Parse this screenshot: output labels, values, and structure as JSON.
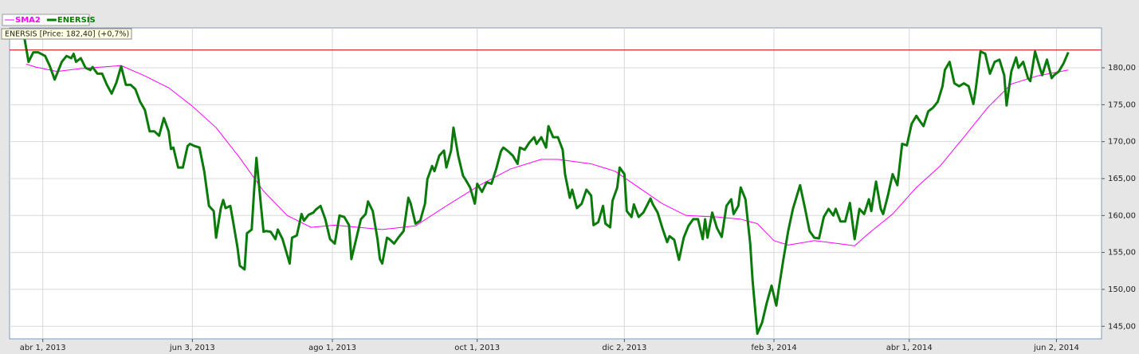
{
  "chart_data": {
    "type": "line",
    "annotation": "ENERSIS [Price: 182,40] (+0,7%)",
    "price_line": 182.4,
    "price_line_color": "#c00000",
    "grid": true,
    "xlim": [
      "2013-03-18",
      "2014-06-21"
    ],
    "xticks": [
      {
        "value": "2013-04-01",
        "label": "abr 1, 2013"
      },
      {
        "value": "2013-06-03",
        "label": "jun 3, 2013"
      },
      {
        "value": "2013-08-01",
        "label": "ago 1, 2013"
      },
      {
        "value": "2013-10-01",
        "label": "oct 1, 2013"
      },
      {
        "value": "2013-12-02",
        "label": "dic 2, 2013"
      },
      {
        "value": "2014-02-03",
        "label": "feb 3, 2014"
      },
      {
        "value": "2014-04-01",
        "label": "abr 1, 2014"
      },
      {
        "value": "2014-06-02",
        "label": "jun 2, 2014"
      }
    ],
    "ylim": [
      143.3,
      185.4
    ],
    "yticks": [
      {
        "value": 145,
        "label": "145,00"
      },
      {
        "value": 150,
        "label": "150,00"
      },
      {
        "value": 155,
        "label": "155,00"
      },
      {
        "value": 160,
        "label": "160,00"
      },
      {
        "value": 165,
        "label": "165,00"
      },
      {
        "value": 170,
        "label": "170,00"
      },
      {
        "value": 175,
        "label": "175,00"
      },
      {
        "value": 180,
        "label": "180,00"
      }
    ],
    "series": [
      {
        "name": "SMA2",
        "color": "#ff00ff",
        "width": 1,
        "x": [
          "2013-03-25",
          "2013-03-29",
          "2013-04-07",
          "2013-04-17",
          "2013-05-04",
          "2013-05-14",
          "2013-05-24",
          "2013-06-03",
          "2013-06-13",
          "2013-06-23",
          "2013-07-03",
          "2013-07-13",
          "2013-07-23",
          "2013-08-02",
          "2013-08-12",
          "2013-08-22",
          "2013-09-05",
          "2013-09-18",
          "2013-10-02",
          "2013-10-15",
          "2013-10-28",
          "2013-11-04",
          "2013-11-18",
          "2013-11-28",
          "2013-12-08",
          "2013-12-18",
          "2013-12-28",
          "2014-01-10",
          "2014-01-20",
          "2014-01-27",
          "2014-02-03",
          "2014-02-09",
          "2014-02-20",
          "2014-03-02",
          "2014-03-09",
          "2014-03-15",
          "2014-03-25",
          "2014-04-04",
          "2014-04-14",
          "2014-04-24",
          "2014-05-04",
          "2014-05-14",
          "2014-05-25",
          "2014-06-07"
        ],
        "values": [
          180.5,
          180.1,
          179.5,
          179.9,
          180.3,
          178.9,
          177.3,
          174.8,
          171.9,
          167.8,
          163.3,
          160,
          158.4,
          158.7,
          158.4,
          158.1,
          158.6,
          161.3,
          164.1,
          166.3,
          167.6,
          167.6,
          167,
          166,
          163.8,
          161.6,
          160,
          159.8,
          159.5,
          158.9,
          156.6,
          156,
          156.6,
          156.2,
          155.9,
          157.6,
          160.2,
          163.8,
          166.7,
          170.6,
          174.6,
          177.8,
          178.9,
          179.7
        ]
      },
      {
        "name": "ENERSIS",
        "color": "#0a7a0a",
        "width": 3,
        "x": [
          "2013-03-24",
          "2013-03-26",
          "2013-03-28",
          "2013-03-30",
          "2013-04-02",
          "2013-04-04",
          "2013-04-06",
          "2013-04-09",
          "2013-04-11",
          "2013-04-13",
          "2013-04-14",
          "2013-04-15",
          "2013-04-17",
          "2013-04-19",
          "2013-04-21",
          "2013-04-22",
          "2013-04-24",
          "2013-04-26",
          "2013-04-28",
          "2013-04-30",
          "2013-05-02",
          "2013-05-04",
          "2013-05-06",
          "2013-05-08",
          "2013-05-10",
          "2013-05-12",
          "2013-05-14",
          "2013-05-16",
          "2013-05-18",
          "2013-05-20",
          "2013-05-22",
          "2013-05-24",
          "2013-05-25",
          "2013-05-26",
          "2013-05-28",
          "2013-05-30",
          "2013-06-01",
          "2013-06-02",
          "2013-06-04",
          "2013-06-06",
          "2013-06-08",
          "2013-06-10",
          "2013-06-12",
          "2013-06-13",
          "2013-06-15",
          "2013-06-16",
          "2013-06-17",
          "2013-06-19",
          "2013-06-20",
          "2013-06-22",
          "2013-06-23",
          "2013-06-25",
          "2013-06-26",
          "2013-06-28",
          "2013-06-29",
          "2013-06-30",
          "2013-07-02",
          "2013-07-03",
          "2013-07-04",
          "2013-07-06",
          "2013-07-08",
          "2013-07-09",
          "2013-07-11",
          "2013-07-14",
          "2013-07-15",
          "2013-07-17",
          "2013-07-19",
          "2013-07-20",
          "2013-07-22",
          "2013-07-24",
          "2013-07-25",
          "2013-07-27",
          "2013-07-29",
          "2013-07-31",
          "2013-08-02",
          "2013-08-04",
          "2013-08-06",
          "2013-08-08",
          "2013-08-09",
          "2013-08-11",
          "2013-08-13",
          "2013-08-15",
          "2013-08-16",
          "2013-08-18",
          "2013-08-20",
          "2013-08-21",
          "2013-08-22",
          "2013-08-24",
          "2013-08-25",
          "2013-08-27",
          "2013-08-29",
          "2013-08-31",
          "2013-09-02",
          "2013-09-03",
          "2013-09-05",
          "2013-09-07",
          "2013-09-09",
          "2013-09-10",
          "2013-09-12",
          "2013-09-13",
          "2013-09-15",
          "2013-09-17",
          "2013-09-18",
          "2013-09-20",
          "2013-09-21",
          "2013-09-23",
          "2013-09-25",
          "2013-09-26",
          "2013-09-28",
          "2013-09-30",
          "2013-10-01",
          "2013-10-03",
          "2013-10-05",
          "2013-10-07",
          "2013-10-09",
          "2013-10-11",
          "2013-10-12",
          "2013-10-14",
          "2013-10-16",
          "2013-10-18",
          "2013-10-19",
          "2013-10-21",
          "2013-10-23",
          "2013-10-25",
          "2013-10-26",
          "2013-10-28",
          "2013-10-30",
          "2013-10-31",
          "2013-11-02",
          "2013-11-04",
          "2013-11-06",
          "2013-11-07",
          "2013-11-09",
          "2013-11-10",
          "2013-11-12",
          "2013-11-14",
          "2013-11-16",
          "2013-11-18",
          "2013-11-19",
          "2013-11-21",
          "2013-11-23",
          "2013-11-24",
          "2013-11-26",
          "2013-11-27",
          "2013-11-29",
          "2013-11-30",
          "2013-12-02",
          "2013-12-03",
          "2013-12-05",
          "2013-12-06",
          "2013-12-08",
          "2013-12-10",
          "2013-12-13",
          "2013-12-14",
          "2013-12-16",
          "2013-12-18",
          "2013-12-20",
          "2013-12-21",
          "2013-12-23",
          "2013-12-25",
          "2013-12-27",
          "2013-12-29",
          "2013-12-31",
          "2014-01-02",
          "2014-01-04",
          "2014-01-05",
          "2014-01-06",
          "2014-01-08",
          "2014-01-10",
          "2014-01-12",
          "2014-01-14",
          "2014-01-16",
          "2014-01-17",
          "2014-01-19",
          "2014-01-20",
          "2014-01-22",
          "2014-01-24",
          "2014-01-25",
          "2014-01-27",
          "2014-01-29",
          "2014-01-31",
          "2014-02-02",
          "2014-02-04",
          "2014-02-05",
          "2014-02-07",
          "2014-02-09",
          "2014-02-11",
          "2014-02-14",
          "2014-02-16",
          "2014-02-18",
          "2014-02-20",
          "2014-02-22",
          "2014-02-24",
          "2014-02-26",
          "2014-02-28",
          "2014-03-01",
          "2014-03-03",
          "2014-03-05",
          "2014-03-07",
          "2014-03-09",
          "2014-03-11",
          "2014-03-13",
          "2014-03-15",
          "2014-03-16",
          "2014-03-18",
          "2014-03-20",
          "2014-03-21",
          "2014-03-23",
          "2014-03-25",
          "2014-03-27",
          "2014-03-29",
          "2014-03-31",
          "2014-04-02",
          "2014-04-04",
          "2014-04-05",
          "2014-04-07",
          "2014-04-09",
          "2014-04-11",
          "2014-04-13",
          "2014-04-15",
          "2014-04-16",
          "2014-04-18",
          "2014-04-20",
          "2014-04-22",
          "2014-04-24",
          "2014-04-26",
          "2014-04-28",
          "2014-04-29",
          "2014-05-01",
          "2014-05-03",
          "2014-05-05",
          "2014-05-07",
          "2014-05-09",
          "2014-05-11",
          "2014-05-12",
          "2014-05-14",
          "2014-05-16",
          "2014-05-17",
          "2014-05-19",
          "2014-05-21",
          "2014-05-22",
          "2014-05-24",
          "2014-05-26",
          "2014-05-27",
          "2014-05-29",
          "2014-05-31",
          "2014-06-01",
          "2014-06-03",
          "2014-06-05",
          "2014-06-07"
        ],
        "values": [
          184.5,
          180.8,
          182.1,
          182.1,
          181.6,
          180.2,
          178.4,
          180.8,
          181.6,
          181.3,
          181.9,
          180.8,
          181.3,
          180,
          179.7,
          180.1,
          179.2,
          179.2,
          177.7,
          176.5,
          178,
          180.2,
          177.7,
          177.7,
          177.1,
          175.4,
          174.3,
          171.4,
          171.4,
          170.8,
          173.2,
          171.4,
          169,
          169.2,
          166.5,
          166.5,
          169.4,
          169.7,
          169.4,
          169.2,
          166,
          161.3,
          160.6,
          157,
          161,
          162.1,
          161,
          161.3,
          159.5,
          155.7,
          153.2,
          152.7,
          157.6,
          158.1,
          163.3,
          167.8,
          161,
          157.8,
          157.9,
          157.8,
          156.8,
          158.1,
          156.8,
          153.5,
          157,
          157.3,
          160.2,
          159.3,
          160.1,
          160.4,
          160.8,
          161.3,
          159.5,
          156.8,
          156.2,
          160,
          159.8,
          158.7,
          154.1,
          156.8,
          159.5,
          160.2,
          161.9,
          160.6,
          156.8,
          154.1,
          153.5,
          157,
          156.8,
          156.2,
          157.1,
          157.9,
          162.4,
          161.6,
          158.9,
          159.3,
          161.6,
          164.9,
          166.7,
          166,
          168.1,
          168.8,
          166.5,
          168.8,
          171.9,
          168.1,
          165.4,
          164.9,
          163.8,
          161.6,
          164.3,
          163.2,
          164.5,
          164.3,
          166.3,
          168.7,
          169.2,
          168.7,
          168.1,
          167,
          169.2,
          168.9,
          169.9,
          170.6,
          169.7,
          170.6,
          169.2,
          172.1,
          170.6,
          170.6,
          168.9,
          165.6,
          162.4,
          163.5,
          161,
          161.6,
          163.5,
          162.7,
          158.7,
          159.1,
          161.3,
          158.9,
          158.4,
          162,
          163.8,
          166.5,
          165.6,
          160.6,
          159.8,
          161.5,
          159.8,
          160.4,
          162.3,
          161.5,
          160.4,
          158.3,
          156.4,
          157.2,
          156.7,
          154,
          157,
          158.6,
          159.5,
          159.5,
          156.8,
          159.5,
          157,
          160.4,
          158.3,
          157.1,
          161.3,
          162.2,
          160.2,
          161.3,
          163.8,
          162.2,
          156.2,
          151.2,
          144,
          145.5,
          148.2,
          150.5,
          147.8,
          150,
          154.1,
          157.9,
          160.9,
          164.1,
          161.1,
          157.9,
          157,
          156.9,
          159.8,
          160.9,
          160,
          160.9,
          159.2,
          159.2,
          161.7,
          156.8,
          160.9,
          160.2,
          162.2,
          160.6,
          164.6,
          160.9,
          160.2,
          162.7,
          165.6,
          164.1,
          169.7,
          169.5,
          172.4,
          173.5,
          173,
          172.1,
          174.1,
          174.6,
          175.4,
          177.5,
          179.7,
          180.8,
          177.9,
          177.5,
          177.9,
          177.5,
          175.1,
          177.1,
          182.2,
          181.9,
          179.2,
          180.8,
          181.1,
          179,
          174.9,
          179.5,
          181.4,
          180,
          180.8,
          178.6,
          178.2,
          182.2,
          180,
          179,
          181.1,
          178.6,
          179,
          179.5,
          180.6,
          182.1
        ]
      }
    ]
  }
}
